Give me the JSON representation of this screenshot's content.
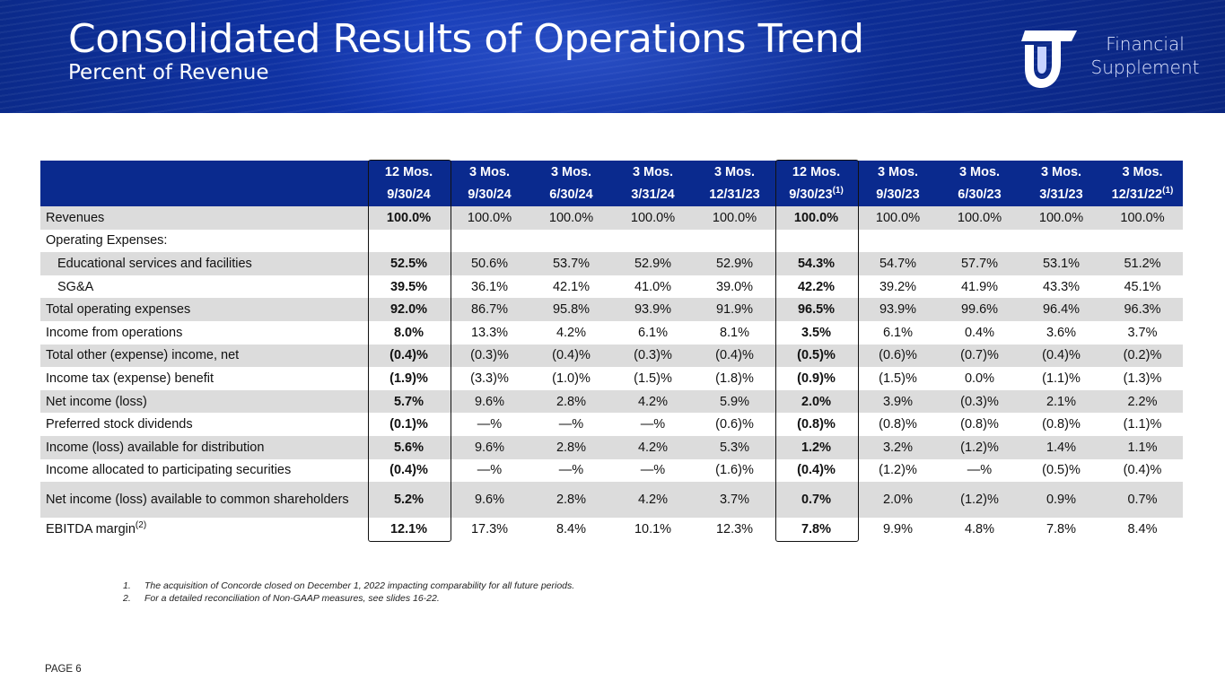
{
  "header": {
    "title": "Consolidated Results of Operations Trend",
    "subtitle": "Percent of Revenue",
    "supplement_line1": "Financial",
    "supplement_line2": "Supplement"
  },
  "table": {
    "columns": [
      {
        "top": "12 Mos.",
        "date": "9/30/24",
        "sup": ""
      },
      {
        "top": "3 Mos.",
        "date": "9/30/24",
        "sup": ""
      },
      {
        "top": "3 Mos.",
        "date": "6/30/24",
        "sup": ""
      },
      {
        "top": "3 Mos.",
        "date": "3/31/24",
        "sup": ""
      },
      {
        "top": "3 Mos.",
        "date": "12/31/23",
        "sup": ""
      },
      {
        "top": "12 Mos.",
        "date": "9/30/23",
        "sup": "(1)"
      },
      {
        "top": "3 Mos.",
        "date": "9/30/23",
        "sup": ""
      },
      {
        "top": "3 Mos.",
        "date": "6/30/23",
        "sup": ""
      },
      {
        "top": "3 Mos.",
        "date": "3/31/23",
        "sup": ""
      },
      {
        "top": "3 Mos.",
        "date": "12/31/22",
        "sup": "(1)"
      }
    ],
    "rows": [
      {
        "label": "Revenues",
        "sup": "",
        "values": [
          "100.0%",
          "100.0%",
          "100.0%",
          "100.0%",
          "100.0%",
          "100.0%",
          "100.0%",
          "100.0%",
          "100.0%",
          "100.0%"
        ]
      },
      {
        "label": "Operating Expenses:",
        "sup": "",
        "values": [
          "",
          "",
          "",
          "",
          "",
          "",
          "",
          "",
          "",
          ""
        ]
      },
      {
        "label": "Educational services and facilities",
        "sup": "",
        "indent": true,
        "values": [
          "52.5%",
          "50.6%",
          "53.7%",
          "52.9%",
          "52.9%",
          "54.3%",
          "54.7%",
          "57.7%",
          "53.1%",
          "51.2%"
        ]
      },
      {
        "label": "SG&A",
        "sup": "",
        "indent": true,
        "values": [
          "39.5%",
          "36.1%",
          "42.1%",
          "41.0%",
          "39.0%",
          "42.2%",
          "39.2%",
          "41.9%",
          "43.3%",
          "45.1%"
        ]
      },
      {
        "label": "Total operating expenses",
        "sup": "",
        "values": [
          "92.0%",
          "86.7%",
          "95.8%",
          "93.9%",
          "91.9%",
          "96.5%",
          "93.9%",
          "99.6%",
          "96.4%",
          "96.3%"
        ]
      },
      {
        "label": "Income from operations",
        "sup": "",
        "values": [
          "8.0%",
          "13.3%",
          "4.2%",
          "6.1%",
          "8.1%",
          "3.5%",
          "6.1%",
          "0.4%",
          "3.6%",
          "3.7%"
        ]
      },
      {
        "label": "Total other (expense) income, net",
        "sup": "",
        "values": [
          "(0.4)%",
          "(0.3)%",
          "(0.4)%",
          "(0.3)%",
          "(0.4)%",
          "(0.5)%",
          "(0.6)%",
          "(0.7)%",
          "(0.4)%",
          "(0.2)%"
        ]
      },
      {
        "label": "Income tax (expense) benefit",
        "sup": "",
        "values": [
          "(1.9)%",
          "(3.3)%",
          "(1.0)%",
          "(1.5)%",
          "(1.8)%",
          "(0.9)%",
          "(1.5)%",
          "0.0%",
          "(1.1)%",
          "(1.3)%"
        ]
      },
      {
        "label": "Net income (loss)",
        "sup": "",
        "values": [
          "5.7%",
          "9.6%",
          "2.8%",
          "4.2%",
          "5.9%",
          "2.0%",
          "3.9%",
          "(0.3)%",
          "2.1%",
          "2.2%"
        ]
      },
      {
        "label": "Preferred stock dividends",
        "sup": "",
        "values": [
          "(0.1)%",
          "—%",
          "—%",
          "—%",
          "(0.6)%",
          "(0.8)%",
          "(0.8)%",
          "(0.8)%",
          "(0.8)%",
          "(1.1)%"
        ]
      },
      {
        "label": "Income (loss) available for distribution",
        "sup": "",
        "values": [
          "5.6%",
          "9.6%",
          "2.8%",
          "4.2%",
          "5.3%",
          "1.2%",
          "3.2%",
          "(1.2)%",
          "1.4%",
          "1.1%"
        ]
      },
      {
        "label": "Income allocated to participating securities",
        "sup": "",
        "values": [
          "(0.4)%",
          "—%",
          "—%",
          "—%",
          "(1.6)%",
          "(0.4)%",
          "(1.2)%",
          "—%",
          "(0.5)%",
          "(0.4)%"
        ]
      },
      {
        "label": "Net income (loss) available to common shareholders",
        "sup": "",
        "tall": true,
        "values": [
          "5.2%",
          "9.6%",
          "2.8%",
          "4.2%",
          "3.7%",
          "0.7%",
          "2.0%",
          "(1.2)%",
          "0.9%",
          "0.7%"
        ]
      },
      {
        "label": "EBITDA margin",
        "sup": "(2)",
        "values": [
          "12.1%",
          "17.3%",
          "8.4%",
          "10.1%",
          "12.3%",
          "7.8%",
          "9.9%",
          "4.8%",
          "7.8%",
          "8.4%"
        ]
      }
    ]
  },
  "footnotes": [
    {
      "num": "1.",
      "text": "The acquisition of Concorde closed on December 1, 2022 impacting comparability for all future periods."
    },
    {
      "num": "2.",
      "text": "For a detailed reconciliation of Non-GAAP measures, see slides 16-22."
    }
  ],
  "page_label": "PAGE 6"
}
